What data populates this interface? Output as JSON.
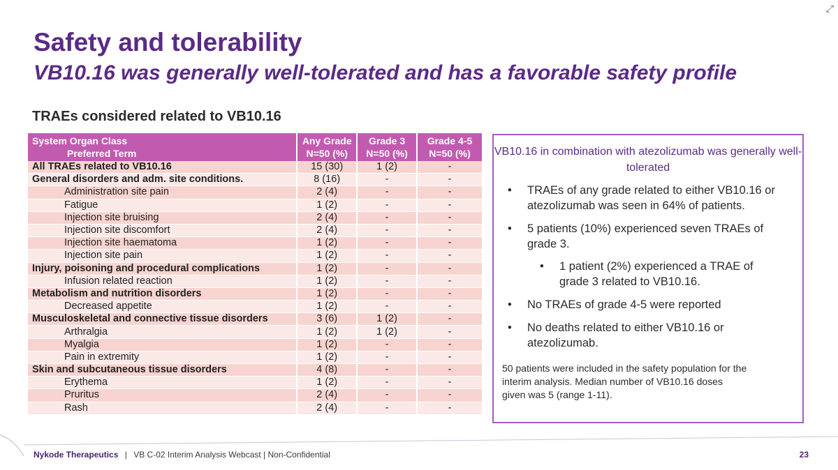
{
  "title": "Safety and tolerability",
  "subtitle": "VB10.16 was generally well-tolerated and has a favorable safety profile",
  "table_heading": "TRAEs considered related to VB10.16",
  "table": {
    "headers": {
      "col0_line1": "System Organ Class",
      "col0_line2": "Preferred Term",
      "any_grade": "Any Grade N=50 (%)",
      "grade3": "Grade 3 N=50 (%)",
      "grade45": "Grade 4-5 N=50 (%)"
    },
    "rows": [
      {
        "term": "All TRAEs related to VB10.16",
        "any": "15 (30)",
        "g3": "1 (2)",
        "g45": "-",
        "level": "bold"
      },
      {
        "term": "General disorders and adm. site conditions.",
        "any": "8 (16)",
        "g3": "-",
        "g45": "-",
        "level": "bold"
      },
      {
        "term": "Administration site pain",
        "any": "2 (4)",
        "g3": "-",
        "g45": "-",
        "level": "sub"
      },
      {
        "term": "Fatigue",
        "any": "1 (2)",
        "g3": "-",
        "g45": "-",
        "level": "sub"
      },
      {
        "term": "Injection site bruising",
        "any": "2 (4)",
        "g3": "-",
        "g45": "-",
        "level": "sub"
      },
      {
        "term": "Injection site discomfort",
        "any": "2 (4)",
        "g3": "-",
        "g45": "-",
        "level": "sub"
      },
      {
        "term": "Injection site haematoma",
        "any": "1 (2)",
        "g3": "-",
        "g45": "-",
        "level": "sub"
      },
      {
        "term": "Injection site pain",
        "any": "1 (2)",
        "g3": "-",
        "g45": "-",
        "level": "sub"
      },
      {
        "term": "Injury, poisoning and procedural complications",
        "any": "1 (2)",
        "g3": "-",
        "g45": "-",
        "level": "bold"
      },
      {
        "term": "Infusion related reaction",
        "any": "1 (2)",
        "g3": "-",
        "g45": "-",
        "level": "sub"
      },
      {
        "term": "Metabolism and nutrition disorders",
        "any": "1 (2)",
        "g3": "-",
        "g45": "-",
        "level": "bold"
      },
      {
        "term": "Decreased appetite",
        "any": "1 (2)",
        "g3": "-",
        "g45": "-",
        "level": "sub"
      },
      {
        "term": "Musculoskeletal and connective tissue disorders",
        "any": "3 (6)",
        "g3": "1 (2)",
        "g45": "-",
        "level": "bold"
      },
      {
        "term": "Arthralgia",
        "any": "1 (2)",
        "g3": "1 (2)",
        "g45": "-",
        "level": "sub"
      },
      {
        "term": "Myalgia",
        "any": "1 (2)",
        "g3": "-",
        "g45": "-",
        "level": "sub"
      },
      {
        "term": "Pain in extremity",
        "any": "1 (2)",
        "g3": "-",
        "g45": "-",
        "level": "sub"
      },
      {
        "term": "Skin and subcutaneous tissue disorders",
        "any": "4 (8)",
        "g3": "-",
        "g45": "-",
        "level": "bold"
      },
      {
        "term": "Erythema",
        "any": "1 (2)",
        "g3": "-",
        "g45": "-",
        "level": "sub"
      },
      {
        "term": "Pruritus",
        "any": "2 (4)",
        "g3": "-",
        "g45": "-",
        "level": "sub"
      },
      {
        "term": "Rash",
        "any": "2 (4)",
        "g3": "-",
        "g45": "-",
        "level": "sub"
      }
    ]
  },
  "summary": {
    "heading": "VB10.16 in combination with atezolizumab was generally well-tolerated",
    "bullet_char": "•",
    "bullets": [
      "TRAEs of any grade related to either VB10.16 or atezolizumab was seen in 64% of patients.",
      "5 patients (10%) experienced seven TRAEs of grade 3.",
      "1 patient (2%) experienced a TRAE of grade 3 related to VB10.16.",
      "No TRAEs of grade 4-5 were reported",
      "No deaths related to either VB10.16 or atezolizumab."
    ],
    "note": "50 patients were included in the safety population for the\n interim analysis. Median number of VB10.16 doses\ngiven was 5 (range 1-11)."
  },
  "footer": {
    "company": "Nykode Therapeutics",
    "separator": "|",
    "text": "VB C-02 Interim Analysis Webcast | Non-Confidential",
    "page": "23"
  },
  "colors": {
    "brand_purple": "#5b2a86",
    "header_magenta": "#c25bb0",
    "row_dark": "#f7d4d0",
    "row_light": "#fbe9e7",
    "box_border": "#a25dc4"
  }
}
